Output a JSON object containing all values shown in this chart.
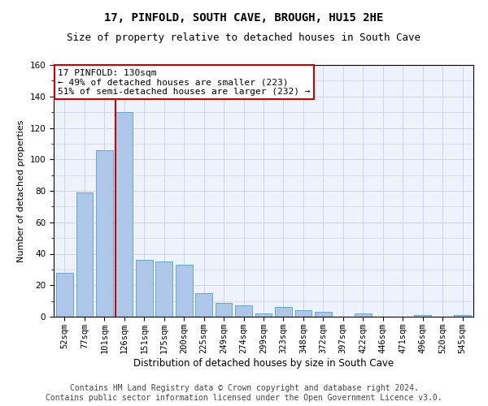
{
  "title": "17, PINFOLD, SOUTH CAVE, BROUGH, HU15 2HE",
  "subtitle": "Size of property relative to detached houses in South Cave",
  "xlabel": "Distribution of detached houses by size in South Cave",
  "ylabel": "Number of detached properties",
  "categories": [
    "52sqm",
    "77sqm",
    "101sqm",
    "126sqm",
    "151sqm",
    "175sqm",
    "200sqm",
    "225sqm",
    "249sqm",
    "274sqm",
    "299sqm",
    "323sqm",
    "348sqm",
    "372sqm",
    "397sqm",
    "422sqm",
    "446sqm",
    "471sqm",
    "496sqm",
    "520sqm",
    "545sqm"
  ],
  "values": [
    28,
    79,
    106,
    130,
    36,
    35,
    33,
    15,
    9,
    7,
    2,
    6,
    4,
    3,
    0,
    2,
    0,
    0,
    1,
    0,
    1
  ],
  "bar_color": "#aec6e8",
  "bar_edge_color": "#5a9fc5",
  "vline_x_index": 3,
  "vline_color": "#cc0000",
  "annotation_text": "17 PINFOLD: 130sqm\n← 49% of detached houses are smaller (223)\n51% of semi-detached houses are larger (232) →",
  "annotation_box_color": "#ffffff",
  "annotation_box_edge": "#cc0000",
  "ylim": [
    0,
    160
  ],
  "yticks": [
    0,
    20,
    40,
    60,
    80,
    100,
    120,
    140,
    160
  ],
  "footer_line1": "Contains HM Land Registry data © Crown copyright and database right 2024.",
  "footer_line2": "Contains public sector information licensed under the Open Government Licence v3.0.",
  "background_color": "#eef2fb",
  "grid_color": "#c8d0e8",
  "title_fontsize": 10,
  "subtitle_fontsize": 9,
  "xlabel_fontsize": 8.5,
  "ylabel_fontsize": 8,
  "tick_fontsize": 7.5,
  "annotation_fontsize": 8,
  "footer_fontsize": 7
}
